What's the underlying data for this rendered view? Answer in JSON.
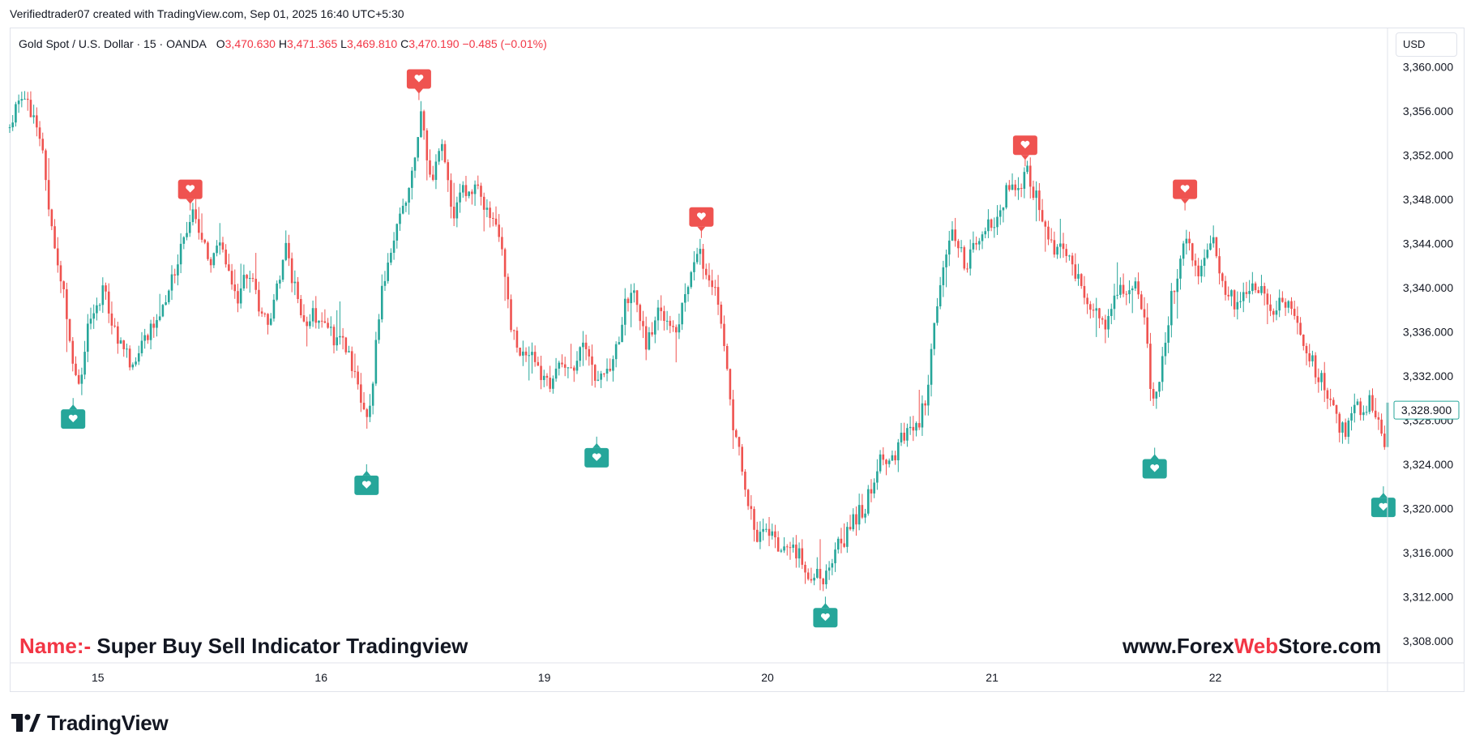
{
  "header": {
    "attribution": "Verifiedtrader07 created with TradingView.com, Sep 01, 2025 16:40 UTC+5:30"
  },
  "legend": {
    "symbol": "Gold Spot / U.S. Dollar · 15 · OANDA",
    "open_label": "O",
    "open": "3,470.630",
    "high_label": "H",
    "high": "3,471.365",
    "low_label": "L",
    "low": "3,469.810",
    "close_label": "C",
    "close": "3,470.190",
    "change": "−0.485 (−0.01%)"
  },
  "currency_button": {
    "label": "USD"
  },
  "overlay": {
    "name_prefix": "Name:-",
    "name_text": "Super Buy Sell Indicator Tradingview",
    "site_prefix": "www.Forex",
    "site_highlight": "Web",
    "site_suffix": "Store.com"
  },
  "brand": {
    "name": "TradingView"
  },
  "colors": {
    "up": "#26a69a",
    "down": "#ef5350",
    "buy_marker": "#26a69a",
    "sell_marker": "#ef5350",
    "legend_value": "#f23645"
  },
  "chart_data": {
    "type": "candlestick",
    "y_ticks": [
      "3,360.000",
      "3,356.000",
      "3,352.000",
      "3,348.000",
      "3,344.000",
      "3,340.000",
      "3,336.000",
      "3,332.000",
      "3,328.000",
      "3,324.000",
      "3,320.000",
      "3,316.000",
      "3,312.000",
      "3,308.000"
    ],
    "x_ticks": [
      {
        "label": "15",
        "pos": 0.064
      },
      {
        "label": "16",
        "pos": 0.226
      },
      {
        "label": "19",
        "pos": 0.388
      },
      {
        "label": "20",
        "pos": 0.55
      },
      {
        "label": "21",
        "pos": 0.713
      },
      {
        "label": "22",
        "pos": 0.875
      }
    ],
    "ylim": [
      3306.0,
      3363.5
    ],
    "last_price": "3,328.900",
    "last_price_value": 3328.9,
    "path": [
      [
        0.0,
        3354.5
      ],
      [
        0.008,
        3357.0
      ],
      [
        0.018,
        3355.5
      ],
      [
        0.025,
        3352.0
      ],
      [
        0.03,
        3345.5
      ],
      [
        0.036,
        3342.0
      ],
      [
        0.04,
        3338.5
      ],
      [
        0.046,
        3333.5
      ],
      [
        0.05,
        3330.5
      ],
      [
        0.056,
        3336.0
      ],
      [
        0.062,
        3337.5
      ],
      [
        0.068,
        3340.5
      ],
      [
        0.075,
        3336.0
      ],
      [
        0.081,
        3335.0
      ],
      [
        0.089,
        3333.0
      ],
      [
        0.098,
        3335.5
      ],
      [
        0.106,
        3337.0
      ],
      [
        0.114,
        3339.5
      ],
      [
        0.121,
        3342.0
      ],
      [
        0.127,
        3344.5
      ],
      [
        0.133,
        3346.5
      ],
      [
        0.14,
        3344.0
      ],
      [
        0.146,
        3342.0
      ],
      [
        0.152,
        3344.5
      ],
      [
        0.159,
        3341.0
      ],
      [
        0.166,
        3339.0
      ],
      [
        0.173,
        3341.5
      ],
      [
        0.181,
        3338.5
      ],
      [
        0.187,
        3336.5
      ],
      [
        0.193,
        3339.5
      ],
      [
        0.2,
        3343.5
      ],
      [
        0.207,
        3340.0
      ],
      [
        0.214,
        3337.0
      ],
      [
        0.221,
        3337.5
      ],
      [
        0.228,
        3337.0
      ],
      [
        0.235,
        3335.5
      ],
      [
        0.24,
        3336.0
      ],
      [
        0.246,
        3334.0
      ],
      [
        0.251,
        3332.0
      ],
      [
        0.256,
        3329.0
      ],
      [
        0.259,
        3327.5
      ],
      [
        0.262,
        3330.0
      ],
      [
        0.266,
        3335.0
      ],
      [
        0.27,
        3340.0
      ],
      [
        0.276,
        3343.5
      ],
      [
        0.282,
        3345.5
      ],
      [
        0.287,
        3347.5
      ],
      [
        0.292,
        3350.5
      ],
      [
        0.296,
        3353.5
      ],
      [
        0.299,
        3356.0
      ],
      [
        0.302,
        3353.0
      ],
      [
        0.306,
        3349.0
      ],
      [
        0.31,
        3351.5
      ],
      [
        0.314,
        3353.5
      ],
      [
        0.318,
        3349.0
      ],
      [
        0.323,
        3346.5
      ],
      [
        0.328,
        3349.0
      ],
      [
        0.334,
        3348.0
      ],
      [
        0.34,
        3349.5
      ],
      [
        0.346,
        3347.0
      ],
      [
        0.351,
        3345.5
      ],
      [
        0.356,
        3344.0
      ],
      [
        0.36,
        3341.0
      ],
      [
        0.364,
        3336.5
      ],
      [
        0.369,
        3334.5
      ],
      [
        0.374,
        3333.5
      ],
      [
        0.38,
        3333.5
      ],
      [
        0.386,
        3332.0
      ],
      [
        0.392,
        3331.5
      ],
      [
        0.397,
        3333.5
      ],
      [
        0.403,
        3332.5
      ],
      [
        0.409,
        3333.0
      ],
      [
        0.415,
        3334.5
      ],
      [
        0.42,
        3334.0
      ],
      [
        0.424,
        3332.0
      ],
      [
        0.428,
        3331.5
      ],
      [
        0.433,
        3332.5
      ],
      [
        0.437,
        3333.5
      ],
      [
        0.442,
        3335.5
      ],
      [
        0.447,
        3338.5
      ],
      [
        0.452,
        3340.5
      ],
      [
        0.457,
        3337.0
      ],
      [
        0.462,
        3335.0
      ],
      [
        0.467,
        3336.5
      ],
      [
        0.472,
        3338.5
      ],
      [
        0.477,
        3337.0
      ],
      [
        0.482,
        3335.5
      ],
      [
        0.488,
        3338.0
      ],
      [
        0.493,
        3339.5
      ],
      [
        0.498,
        3343.5
      ],
      [
        0.503,
        3342.5
      ],
      [
        0.507,
        3340.0
      ],
      [
        0.512,
        3339.5
      ],
      [
        0.517,
        3337.0
      ],
      [
        0.521,
        3332.0
      ],
      [
        0.525,
        3327.0
      ],
      [
        0.53,
        3324.5
      ],
      [
        0.535,
        3321.0
      ],
      [
        0.54,
        3318.5
      ],
      [
        0.545,
        3317.0
      ],
      [
        0.55,
        3318.0
      ],
      [
        0.555,
        3317.0
      ],
      [
        0.56,
        3316.5
      ],
      [
        0.565,
        3316.0
      ],
      [
        0.57,
        3316.5
      ],
      [
        0.575,
        3315.0
      ],
      [
        0.58,
        3313.5
      ],
      [
        0.586,
        3314.0
      ],
      [
        0.591,
        3313.0
      ],
      [
        0.596,
        3315.5
      ],
      [
        0.601,
        3316.5
      ],
      [
        0.606,
        3317.0
      ],
      [
        0.611,
        3318.5
      ],
      [
        0.616,
        3319.5
      ],
      [
        0.621,
        3320.0
      ],
      [
        0.626,
        3322.5
      ],
      [
        0.631,
        3324.5
      ],
      [
        0.636,
        3324.0
      ],
      [
        0.641,
        3324.5
      ],
      [
        0.646,
        3326.0
      ],
      [
        0.651,
        3326.5
      ],
      [
        0.656,
        3327.5
      ],
      [
        0.661,
        3328.0
      ],
      [
        0.666,
        3331.0
      ],
      [
        0.67,
        3335.0
      ],
      [
        0.674,
        3339.0
      ],
      [
        0.679,
        3342.5
      ],
      [
        0.684,
        3345.0
      ],
      [
        0.689,
        3343.5
      ],
      [
        0.694,
        3342.0
      ],
      [
        0.699,
        3343.5
      ],
      [
        0.705,
        3345.0
      ],
      [
        0.711,
        3345.5
      ],
      [
        0.717,
        3346.5
      ],
      [
        0.723,
        3348.5
      ],
      [
        0.729,
        3349.0
      ],
      [
        0.734,
        3348.5
      ],
      [
        0.738,
        3350.5
      ],
      [
        0.742,
        3349.0
      ],
      [
        0.746,
        3348.0
      ],
      [
        0.75,
        3346.0
      ],
      [
        0.755,
        3344.5
      ],
      [
        0.76,
        3343.0
      ],
      [
        0.765,
        3344.0
      ],
      [
        0.77,
        3342.5
      ],
      [
        0.775,
        3341.0
      ],
      [
        0.78,
        3339.5
      ],
      [
        0.785,
        3338.5
      ],
      [
        0.79,
        3337.5
      ],
      [
        0.795,
        3336.5
      ],
      [
        0.8,
        3338.5
      ],
      [
        0.806,
        3339.5
      ],
      [
        0.812,
        3339.0
      ],
      [
        0.818,
        3340.0
      ],
      [
        0.822,
        3338.5
      ],
      [
        0.826,
        3334.0
      ],
      [
        0.829,
        3329.5
      ],
      [
        0.833,
        3330.5
      ],
      [
        0.838,
        3335.0
      ],
      [
        0.843,
        3339.0
      ],
      [
        0.848,
        3341.5
      ],
      [
        0.853,
        3344.0
      ],
      [
        0.858,
        3343.0
      ],
      [
        0.863,
        3341.5
      ],
      [
        0.868,
        3342.5
      ],
      [
        0.872,
        3344.5
      ],
      [
        0.876,
        3343.0
      ],
      [
        0.88,
        3340.0
      ],
      [
        0.885,
        3339.5
      ],
      [
        0.89,
        3338.0
      ],
      [
        0.896,
        3339.0
      ],
      [
        0.902,
        3340.5
      ],
      [
        0.908,
        3340.0
      ],
      [
        0.913,
        3339.0
      ],
      [
        0.918,
        3338.0
      ],
      [
        0.923,
        3339.5
      ],
      [
        0.928,
        3338.0
      ],
      [
        0.933,
        3337.0
      ],
      [
        0.938,
        3335.5
      ],
      [
        0.943,
        3334.0
      ],
      [
        0.948,
        3332.5
      ],
      [
        0.953,
        3331.5
      ],
      [
        0.958,
        3329.5
      ],
      [
        0.963,
        3328.0
      ],
      [
        0.968,
        3327.0
      ],
      [
        0.973,
        3327.5
      ],
      [
        0.978,
        3329.5
      ],
      [
        0.983,
        3329.0
      ],
      [
        0.988,
        3330.0
      ],
      [
        0.993,
        3328.0
      ],
      [
        0.997,
        3325.0
      ],
      [
        1.0,
        3328.9
      ]
    ],
    "signals": [
      {
        "type": "buy",
        "pos": 0.046,
        "value": 3330.0
      },
      {
        "type": "sell",
        "pos": 0.131,
        "value": 3347.0
      },
      {
        "type": "buy",
        "pos": 0.259,
        "value": 3324.0
      },
      {
        "type": "sell",
        "pos": 0.297,
        "value": 3357.0
      },
      {
        "type": "buy",
        "pos": 0.426,
        "value": 3326.5
      },
      {
        "type": "sell",
        "pos": 0.502,
        "value": 3344.5
      },
      {
        "type": "buy",
        "pos": 0.592,
        "value": 3312.0
      },
      {
        "type": "sell",
        "pos": 0.737,
        "value": 3351.0
      },
      {
        "type": "buy",
        "pos": 0.831,
        "value": 3325.5
      },
      {
        "type": "sell",
        "pos": 0.853,
        "value": 3347.0
      },
      {
        "type": "buy",
        "pos": 0.997,
        "value": 3322.0
      }
    ]
  }
}
